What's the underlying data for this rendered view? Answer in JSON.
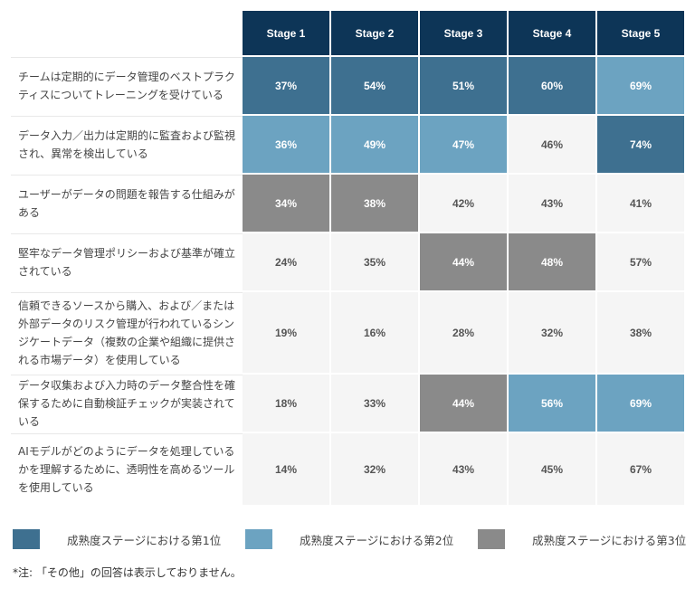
{
  "chart_data": {
    "type": "table",
    "columns": [
      "Stage 1",
      "Stage 2",
      "Stage 3",
      "Stage 4",
      "Stage 5"
    ],
    "rows": [
      {
        "label": "チームは定期的にデータ管理のベストプラクティスについてトレーニングを受けている",
        "values": [
          "37%",
          "54%",
          "51%",
          "60%",
          "69%"
        ],
        "ranks": [
          1,
          1,
          1,
          1,
          2
        ]
      },
      {
        "label": "データ入力／出力は定期的に監査および監視され、異常を検出している",
        "values": [
          "36%",
          "49%",
          "47%",
          "46%",
          "74%"
        ],
        "ranks": [
          2,
          2,
          2,
          0,
          1
        ]
      },
      {
        "label": "ユーザーがデータの問題を報告する仕組みがある",
        "values": [
          "34%",
          "38%",
          "42%",
          "43%",
          "41%"
        ],
        "ranks": [
          3,
          3,
          0,
          0,
          0
        ]
      },
      {
        "label": "堅牢なデータ管理ポリシーおよび基準が確立されている",
        "values": [
          "24%",
          "35%",
          "44%",
          "48%",
          "57%"
        ],
        "ranks": [
          0,
          0,
          3,
          3,
          0
        ]
      },
      {
        "label": "信頼できるソースから購入、および／または外部データのリスク管理が行われているシンジケートデータ（複数の企業や組織に提供される市場データ）を使用している",
        "values": [
          "19%",
          "16%",
          "28%",
          "32%",
          "38%"
        ],
        "ranks": [
          0,
          0,
          0,
          0,
          0
        ]
      },
      {
        "label": "データ収集および入力時のデータ整合性を確保するために自動検証チェックが実装されている",
        "values": [
          "18%",
          "33%",
          "44%",
          "56%",
          "69%"
        ],
        "ranks": [
          0,
          0,
          3,
          2,
          2
        ]
      },
      {
        "label": "AIモデルがどのようにデータを処理しているかを理解するために、透明性を高めるツールを使用している",
        "values": [
          "14%",
          "32%",
          "43%",
          "45%",
          "67%"
        ],
        "ranks": [
          0,
          0,
          0,
          0,
          0
        ]
      }
    ],
    "legend": [
      {
        "label": "成熟度ステージにおける第1位",
        "color": "#3e7090"
      },
      {
        "label": "成熟度ステージにおける第2位",
        "color": "#6ca3c1"
      },
      {
        "label": "成熟度ステージにおける第3位",
        "color": "#8a8a8a"
      }
    ],
    "note": "*注: 「その他」の回答は表示しておりません。"
  }
}
